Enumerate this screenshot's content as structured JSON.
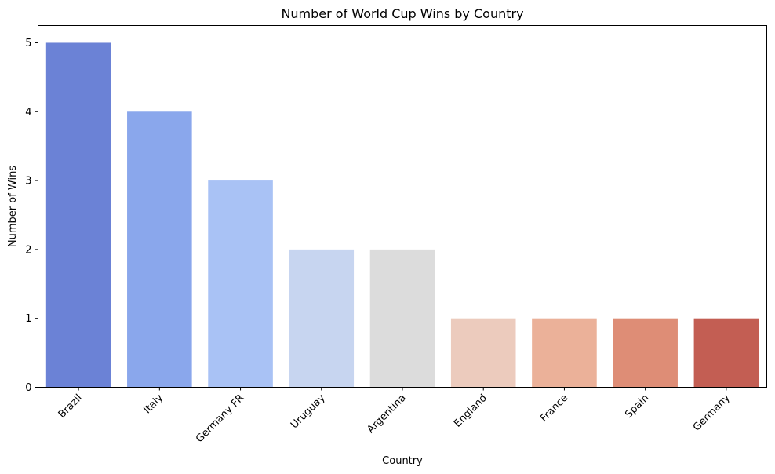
{
  "chart_data": {
    "type": "bar",
    "title": "Number of World Cup Wins by Country",
    "xlabel": "Country",
    "ylabel": "Number of Wins",
    "categories": [
      "Brazil",
      "Italy",
      "Germany FR",
      "Uruguay",
      "Argentina",
      "England",
      "France",
      "Spain",
      "Germany"
    ],
    "values": [
      5,
      4,
      3,
      2,
      2,
      1,
      1,
      1,
      1
    ],
    "colors": [
      "#6b82d6",
      "#8aa7ec",
      "#a9c2f5",
      "#c7d5f0",
      "#dcdcdc",
      "#eccbbd",
      "#ebb199",
      "#de8d76",
      "#c35e53"
    ],
    "ylim": [
      0,
      5.25
    ],
    "yticks": [
      0,
      1,
      2,
      3,
      4,
      5
    ],
    "grid": false,
    "legend": "none"
  }
}
